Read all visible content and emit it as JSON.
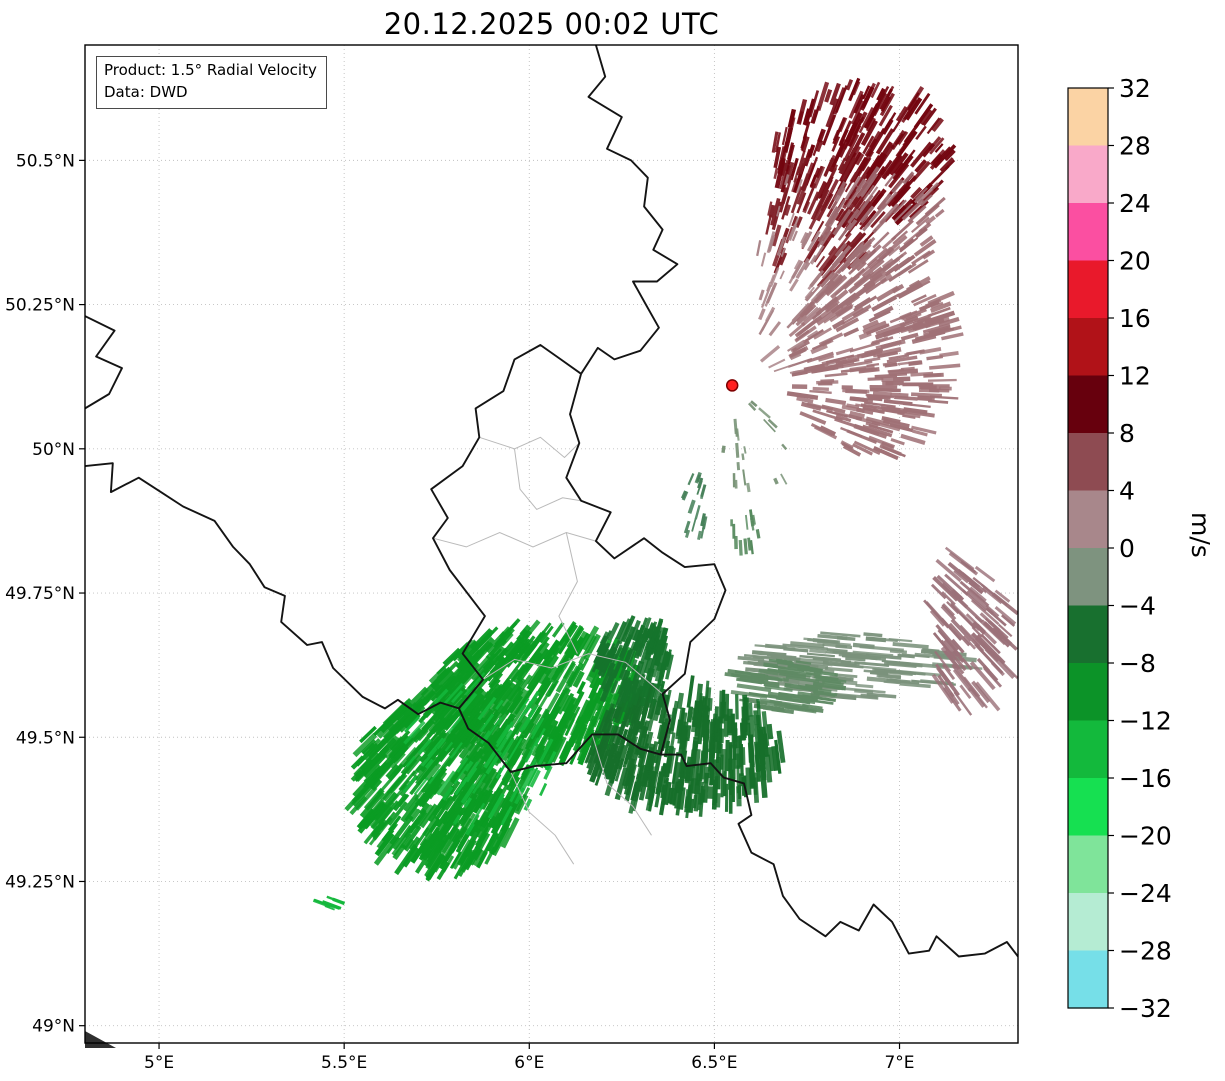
{
  "title": "20.12.2025 00:02 UTC",
  "annotation": {
    "line1": "Product: 1.5° Radial Velocity",
    "line2": "Data: DWD"
  },
  "axes": {
    "extent": {
      "lon_min": 4.8,
      "lon_max": 7.32,
      "lat_min": 48.97,
      "lat_max": 50.7
    },
    "lat_ticks": [
      {
        "value": 50.5,
        "label": "50.5°N"
      },
      {
        "value": 50.25,
        "label": "50.25°N"
      },
      {
        "value": 50.0,
        "label": "50°N"
      },
      {
        "value": 49.75,
        "label": "49.75°N"
      },
      {
        "value": 49.5,
        "label": "49.5°N"
      },
      {
        "value": 49.25,
        "label": "49.25°N"
      },
      {
        "value": 49.0,
        "label": "49°N"
      }
    ],
    "lon_ticks": [
      {
        "value": 5.0,
        "label": "5°E"
      },
      {
        "value": 5.5,
        "label": "5.5°E"
      },
      {
        "value": 6.0,
        "label": "6°E"
      },
      {
        "value": 6.5,
        "label": "6.5°E"
      },
      {
        "value": 7.0,
        "label": "7°E"
      }
    ]
  },
  "colorbar": {
    "unit": "m/s",
    "min": -32,
    "max": 32,
    "tick_labels": [
      "32",
      "28",
      "24",
      "20",
      "16",
      "12",
      "8",
      "4",
      "0",
      "−4",
      "−8",
      "−12",
      "−16",
      "−20",
      "−24",
      "−28",
      "−32"
    ],
    "segments_top_to_bottom": [
      {
        "range": "28 to 32",
        "color": "#fbd3a4"
      },
      {
        "range": "24 to 28",
        "color": "#f9a9c9"
      },
      {
        "range": "20 to 24",
        "color": "#fb4fa1"
      },
      {
        "range": "16 to 20",
        "color": "#e9192b"
      },
      {
        "range": "12 to 16",
        "color": "#b11218"
      },
      {
        "range": "8 to 12",
        "color": "#67000d"
      },
      {
        "range": "4 to 8",
        "color": "#8e4b52"
      },
      {
        "range": "0 to 4",
        "color": "#a8878b"
      },
      {
        "range": "−4 to 0",
        "color": "#7e937f"
      },
      {
        "range": "−8 to −4",
        "color": "#18702f"
      },
      {
        "range": "−12 to −8",
        "color": "#0c9328"
      },
      {
        "range": "−16 to −12",
        "color": "#13b93c"
      },
      {
        "range": "−20 to −16",
        "color": "#16e051"
      },
      {
        "range": "−24 to −20",
        "color": "#7fe49a"
      },
      {
        "range": "−28 to −24",
        "color": "#b5ecd3"
      },
      {
        "range": "−32 to −28",
        "color": "#76dfe8"
      }
    ]
  },
  "map": {
    "national_borders": [
      [
        [
          6.18,
          50.7
        ],
        [
          6.205,
          50.645
        ],
        [
          6.16,
          50.61
        ],
        [
          6.25,
          50.575
        ],
        [
          6.21,
          50.52
        ],
        [
          6.275,
          50.5
        ],
        [
          6.32,
          50.47
        ],
        [
          6.31,
          50.42
        ],
        [
          6.36,
          50.38
        ],
        [
          6.335,
          50.345
        ],
        [
          6.4,
          50.32
        ],
        [
          6.345,
          50.29
        ],
        [
          6.28,
          50.29
        ],
        [
          6.315,
          50.25
        ],
        [
          6.35,
          50.21
        ],
        [
          6.3,
          50.17
        ],
        [
          6.23,
          50.155
        ],
        [
          6.185,
          50.175
        ],
        [
          6.14,
          50.13
        ]
      ],
      [
        [
          6.14,
          50.13
        ],
        [
          6.11,
          50.06
        ],
        [
          6.135,
          50.01
        ],
        [
          6.1,
          49.95
        ],
        [
          6.14,
          49.91
        ],
        [
          6.22,
          49.89
        ],
        [
          6.18,
          49.84
        ],
        [
          6.23,
          49.81
        ],
        [
          6.31,
          49.845
        ],
        [
          6.36,
          49.82
        ],
        [
          6.42,
          49.795
        ],
        [
          6.5,
          49.8
        ],
        [
          6.53,
          49.755
        ],
        [
          6.5,
          49.705
        ],
        [
          6.435,
          49.665
        ],
        [
          6.42,
          49.61
        ],
        [
          6.36,
          49.575
        ],
        [
          6.38,
          49.53
        ],
        [
          6.355,
          49.47
        ],
        [
          6.3,
          49.48
        ],
        [
          6.24,
          49.505
        ],
        [
          6.17,
          49.505
        ],
        [
          6.1,
          49.455
        ],
        [
          6.015,
          49.45
        ],
        [
          5.95,
          49.44
        ],
        [
          5.89,
          49.49
        ],
        [
          5.835,
          49.515
        ],
        [
          5.81,
          49.55
        ],
        [
          5.875,
          49.6
        ],
        [
          5.82,
          49.645
        ],
        [
          5.88,
          49.71
        ],
        [
          5.785,
          49.79
        ],
        [
          5.74,
          49.845
        ],
        [
          5.78,
          49.88
        ],
        [
          5.735,
          49.93
        ],
        [
          5.82,
          49.97
        ],
        [
          5.865,
          50.02
        ],
        [
          5.855,
          50.07
        ],
        [
          5.93,
          50.1
        ],
        [
          5.96,
          50.155
        ],
        [
          6.03,
          50.18
        ],
        [
          6.085,
          50.155
        ],
        [
          6.14,
          50.13
        ]
      ],
      [
        [
          4.8,
          49.97
        ],
        [
          4.875,
          49.975
        ],
        [
          4.87,
          49.925
        ],
        [
          4.945,
          49.95
        ],
        [
          5.005,
          49.925
        ],
        [
          5.065,
          49.9
        ],
        [
          5.15,
          49.875
        ],
        [
          5.2,
          49.83
        ],
        [
          5.245,
          49.8
        ],
        [
          5.285,
          49.76
        ],
        [
          5.34,
          49.745
        ],
        [
          5.33,
          49.7
        ],
        [
          5.4,
          49.66
        ],
        [
          5.44,
          49.665
        ],
        [
          5.47,
          49.62
        ],
        [
          5.55,
          49.57
        ],
        [
          5.61,
          49.55
        ],
        [
          5.645,
          49.565
        ],
        [
          5.7,
          49.54
        ],
        [
          5.76,
          49.56
        ],
        [
          5.81,
          49.55
        ]
      ],
      [
        [
          4.8,
          50.23
        ],
        [
          4.88,
          50.205
        ],
        [
          4.83,
          50.16
        ],
        [
          4.9,
          50.14
        ],
        [
          4.865,
          50.095
        ],
        [
          4.8,
          50.07
        ]
      ],
      [
        [
          6.355,
          49.47
        ],
        [
          6.41,
          49.47
        ],
        [
          6.425,
          49.45
        ],
        [
          6.49,
          49.455
        ],
        [
          6.525,
          49.43
        ],
        [
          6.58,
          49.42
        ],
        [
          6.6,
          49.365
        ],
        [
          6.565,
          49.35
        ],
        [
          6.6,
          49.3
        ],
        [
          6.66,
          49.28
        ],
        [
          6.685,
          49.225
        ],
        [
          6.73,
          49.185
        ],
        [
          6.8,
          49.155
        ],
        [
          6.84,
          49.18
        ],
        [
          6.89,
          49.165
        ],
        [
          6.93,
          49.21
        ],
        [
          6.98,
          49.18
        ],
        [
          7.025,
          49.125
        ],
        [
          7.08,
          49.13
        ],
        [
          7.1,
          49.155
        ],
        [
          7.16,
          49.12
        ],
        [
          7.23,
          49.125
        ],
        [
          7.29,
          49.145
        ],
        [
          7.32,
          49.12
        ]
      ]
    ],
    "admin_borders": [
      [
        [
          5.74,
          49.845
        ],
        [
          5.83,
          49.83
        ],
        [
          5.92,
          49.855
        ],
        [
          6.01,
          49.83
        ],
        [
          6.1,
          49.855
        ],
        [
          6.18,
          49.84
        ]
      ],
      [
        [
          5.875,
          49.6
        ],
        [
          5.96,
          49.635
        ],
        [
          6.06,
          49.62
        ],
        [
          6.16,
          49.645
        ],
        [
          6.26,
          49.63
        ],
        [
          6.36,
          49.575
        ]
      ],
      [
        [
          6.1,
          49.855
        ],
        [
          6.13,
          49.77
        ],
        [
          6.08,
          49.71
        ],
        [
          6.13,
          49.645
        ]
      ],
      [
        [
          5.865,
          50.02
        ],
        [
          5.96,
          50.0
        ],
        [
          6.03,
          50.02
        ],
        [
          6.095,
          49.985
        ],
        [
          6.135,
          50.01
        ]
      ],
      [
        [
          5.96,
          50.0
        ],
        [
          5.975,
          49.93
        ],
        [
          6.02,
          49.895
        ],
        [
          6.09,
          49.915
        ],
        [
          6.14,
          49.91
        ]
      ],
      [
        [
          5.95,
          49.44
        ],
        [
          6.0,
          49.37
        ],
        [
          6.07,
          49.33
        ],
        [
          6.12,
          49.28
        ]
      ],
      [
        [
          6.17,
          49.505
        ],
        [
          6.21,
          49.42
        ],
        [
          6.28,
          49.38
        ],
        [
          6.33,
          49.33
        ]
      ]
    ]
  },
  "chart_data": {
    "type": "heatmap",
    "title": "20.12.2025 00:02 UTC",
    "product": "1.5° Radial Velocity",
    "source": "DWD",
    "units": "m/s",
    "value_range": [
      -32,
      32
    ],
    "extent": {
      "lon_min": 4.8,
      "lon_max": 7.32,
      "lat_min": 48.97,
      "lat_max": 50.7
    },
    "radar_site": {
      "lon": 6.548,
      "lat": 50.11,
      "marker_color": "#ff1f1f"
    },
    "echo_regions": [
      {
        "name": "ne-core-dark-red",
        "value_ms": 10,
        "color": "#73050f",
        "lon": 6.9,
        "lat": 50.51,
        "rx": 0.24,
        "ry": 0.125,
        "n": 210,
        "len": 24,
        "w": 3.4,
        "seed": 1
      },
      {
        "name": "ne-dark-red-lower",
        "value_ms": 9,
        "color": "#7c1a22",
        "lon": 6.78,
        "lat": 50.4,
        "rx": 0.15,
        "ry": 0.12,
        "n": 90,
        "len": 22,
        "w": 3.0,
        "seed": 2
      },
      {
        "name": "ne-rose-upper",
        "value_ms": 4,
        "color": "#9d6a70",
        "lon": 6.95,
        "lat": 50.38,
        "rx": 0.17,
        "ry": 0.1,
        "n": 85,
        "len": 22,
        "w": 3.0,
        "seed": 3
      },
      {
        "name": "ne-rose-main",
        "value_ms": 3,
        "color": "#a07176",
        "lon": 6.93,
        "lat": 50.17,
        "rx": 0.215,
        "ry": 0.185,
        "n": 300,
        "len": 24,
        "w": 3.4,
        "seed": 4
      },
      {
        "name": "ne-rose-west-fringe",
        "value_ms": 2,
        "color": "#a98387",
        "lon": 6.7,
        "lat": 50.3,
        "rx": 0.09,
        "ry": 0.17,
        "n": 55,
        "len": 18,
        "w": 2.6,
        "seed": 5
      },
      {
        "name": "near-radar-sage-specks",
        "value_ms": -2,
        "color": "#7a9478",
        "lon": 6.62,
        "lat": 50.0,
        "rx": 0.1,
        "ry": 0.09,
        "n": 20,
        "len": 13,
        "w": 2.6,
        "seed": 6
      },
      {
        "name": "center-green-specks-a",
        "value_ms": -6,
        "color": "#47815a",
        "lon": 6.45,
        "lat": 49.9,
        "rx": 0.035,
        "ry": 0.065,
        "n": 20,
        "len": 12,
        "w": 2.8,
        "seed": 7
      },
      {
        "name": "center-green-specks-b",
        "value_ms": -5,
        "color": "#568a5e",
        "lon": 6.57,
        "lat": 49.86,
        "rx": 0.05,
        "ry": 0.04,
        "n": 13,
        "len": 12,
        "w": 2.6,
        "seed": 8
      },
      {
        "name": "se-sage-band",
        "value_ms": -3,
        "color": "#7b927c",
        "lon": 6.88,
        "lat": 49.625,
        "rx": 0.29,
        "ry": 0.055,
        "n": 120,
        "len": 34,
        "w": 3.2,
        "angle": 5,
        "seed": 9
      },
      {
        "name": "se-sage-band-west",
        "value_ms": -4,
        "color": "#5f8a64",
        "lon": 6.7,
        "lat": 49.59,
        "rx": 0.13,
        "ry": 0.045,
        "n": 65,
        "len": 30,
        "w": 3.4,
        "angle": 8,
        "seed": 10
      },
      {
        "name": "east-mauve-streaks",
        "value_ms": 4,
        "color": "#9b7179",
        "lon": 7.19,
        "lat": 49.68,
        "rx": 0.105,
        "ry": 0.135,
        "n": 100,
        "len": 30,
        "w": 3.0,
        "seed": 11
      },
      {
        "name": "sw-green-west-lobe",
        "value_ms": -13,
        "color": "#0a9c23",
        "lon": 5.76,
        "lat": 49.42,
        "rx": 0.235,
        "ry": 0.155,
        "n": 470,
        "len": 26,
        "w": 4.2,
        "seed": 12
      },
      {
        "name": "sw-green-north-lobe",
        "value_ms": -13,
        "color": "#0a9c23",
        "lon": 6.02,
        "lat": 49.575,
        "rx": 0.28,
        "ry": 0.115,
        "n": 390,
        "len": 26,
        "w": 4.2,
        "seed": 13
      },
      {
        "name": "sw-green-bright-accents",
        "value_ms": -15,
        "color": "#14b83c",
        "lon": 5.85,
        "lat": 49.47,
        "rx": 0.22,
        "ry": 0.13,
        "n": 70,
        "len": 22,
        "w": 3.0,
        "seed": 14
      },
      {
        "name": "s-green-dark-east-lobe",
        "value_ms": -8,
        "color": "#166f2a",
        "lon": 6.42,
        "lat": 49.48,
        "rx": 0.26,
        "ry": 0.1,
        "n": 340,
        "len": 26,
        "w": 4.2,
        "seed": 15
      },
      {
        "name": "s-green-dark-upper",
        "value_ms": -8,
        "color": "#15742c",
        "lon": 6.28,
        "lat": 49.63,
        "rx": 0.1,
        "ry": 0.07,
        "n": 110,
        "len": 24,
        "w": 4.0,
        "seed": 16
      },
      {
        "name": "sw-green-sliver",
        "value_ms": -16,
        "color": "#14b83c",
        "lon": 5.46,
        "lat": 49.21,
        "rx": 0.035,
        "ry": 0.01,
        "n": 7,
        "len": 16,
        "w": 2.6,
        "angle": 20,
        "seed": 17
      }
    ]
  }
}
